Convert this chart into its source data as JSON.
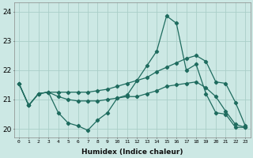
{
  "xlabel": "Humidex (Indice chaleur)",
  "background_color": "#cce8e4",
  "line_color": "#1e6b5e",
  "grid_color": "#aacec8",
  "xlim": [
    -0.5,
    23.5
  ],
  "ylim": [
    19.7,
    24.3
  ],
  "yticks": [
    20,
    21,
    22,
    23,
    24
  ],
  "xticks": [
    0,
    1,
    2,
    3,
    4,
    5,
    6,
    7,
    8,
    9,
    10,
    11,
    12,
    13,
    14,
    15,
    16,
    17,
    18,
    19,
    20,
    21,
    22,
    23
  ],
  "line1_x": [
    0,
    1,
    2,
    3,
    4,
    5,
    6,
    7,
    8,
    9,
    10,
    11,
    12,
    13,
    14,
    15,
    16,
    17,
    18,
    19,
    20,
    21,
    22,
    23
  ],
  "line1_y": [
    21.55,
    20.8,
    21.2,
    21.25,
    20.55,
    20.2,
    20.1,
    19.95,
    20.3,
    20.55,
    21.05,
    21.15,
    21.65,
    22.15,
    22.65,
    23.85,
    23.6,
    22.0,
    22.2,
    21.2,
    20.55,
    20.5,
    20.05,
    20.05
  ],
  "line2_x": [
    0,
    1,
    2,
    3,
    4,
    5,
    6,
    7,
    8,
    9,
    10,
    11,
    12,
    13,
    14,
    15,
    16,
    17,
    18,
    19,
    20,
    21,
    22,
    23
  ],
  "line2_y": [
    21.55,
    20.8,
    21.2,
    21.25,
    21.25,
    21.25,
    21.25,
    21.25,
    21.3,
    21.35,
    21.45,
    21.55,
    21.65,
    21.75,
    21.95,
    22.1,
    22.25,
    22.4,
    22.5,
    22.3,
    21.6,
    21.55,
    20.9,
    20.1
  ],
  "line3_x": [
    0,
    1,
    2,
    3,
    4,
    5,
    6,
    7,
    8,
    9,
    10,
    11,
    12,
    13,
    14,
    15,
    16,
    17,
    18,
    19,
    20,
    21,
    22,
    23
  ],
  "line3_y": [
    21.55,
    20.8,
    21.2,
    21.25,
    21.1,
    21.0,
    20.95,
    20.95,
    20.95,
    21.0,
    21.05,
    21.1,
    21.1,
    21.2,
    21.3,
    21.45,
    21.5,
    21.55,
    21.6,
    21.4,
    21.1,
    20.6,
    20.15,
    20.05
  ]
}
